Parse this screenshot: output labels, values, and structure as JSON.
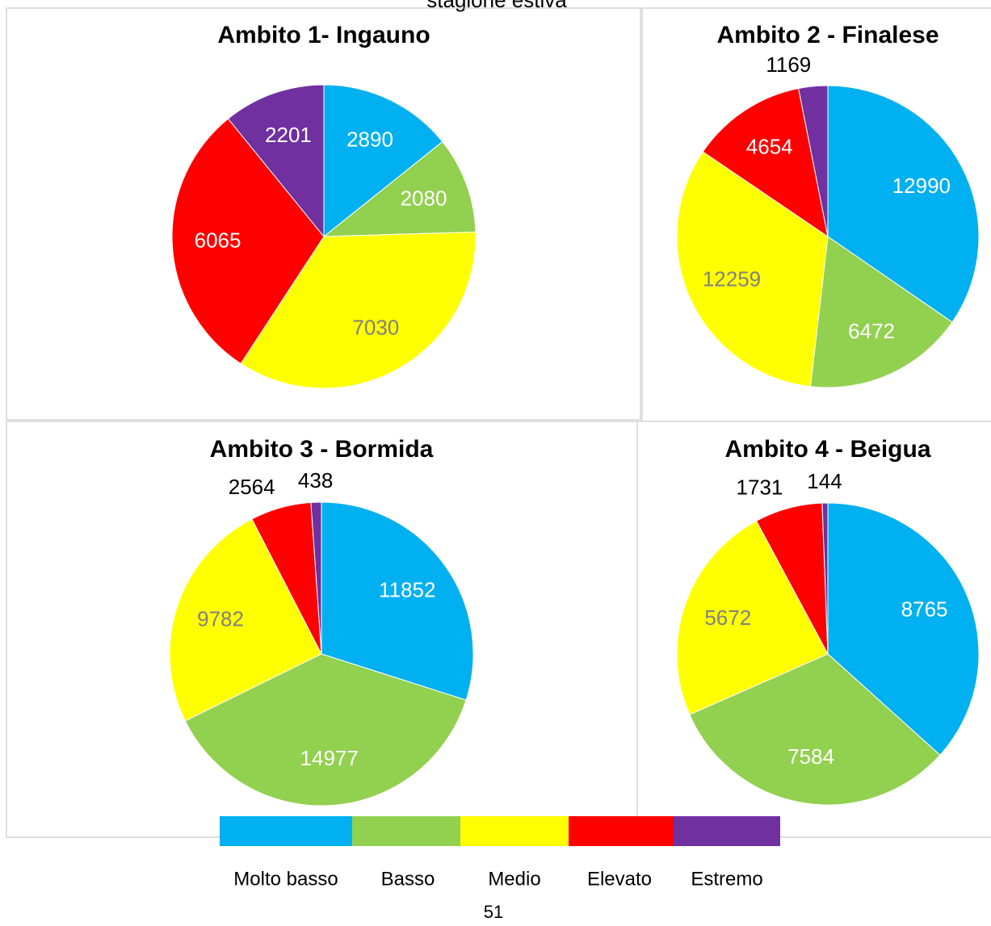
{
  "header": "stagione estiva",
  "page_number": "51",
  "chart_data": [
    {
      "type": "pie",
      "title": "Ambito 1- Ingauno",
      "categories": [
        "Molto basso",
        "Basso",
        "Medio",
        "Elevato",
        "Estremo"
      ],
      "values": [
        2890,
        2080,
        7030,
        6065,
        2201
      ],
      "colors": [
        "#00b0f0",
        "#92d050",
        "#ffff00",
        "#ff0000",
        "#7030a0"
      ]
    },
    {
      "type": "pie",
      "title": "Ambito 2 - Finalese",
      "categories": [
        "Molto basso",
        "Basso",
        "Medio",
        "Elevato",
        "Estremo"
      ],
      "values": [
        12990,
        6472,
        12259,
        4654,
        1169
      ],
      "colors": [
        "#00b0f0",
        "#92d050",
        "#ffff00",
        "#ff0000",
        "#7030a0"
      ]
    },
    {
      "type": "pie",
      "title": "Ambito 3 - Bormida",
      "categories": [
        "Molto basso",
        "Basso",
        "Medio",
        "Elevato",
        "Estremo"
      ],
      "values": [
        11852,
        14977,
        9782,
        2564,
        438
      ],
      "colors": [
        "#00b0f0",
        "#92d050",
        "#ffff00",
        "#ff0000",
        "#7030a0"
      ]
    },
    {
      "type": "pie",
      "title": "Ambito 4 - Beigua",
      "categories": [
        "Molto basso",
        "Basso",
        "Medio",
        "Elevato",
        "Estremo"
      ],
      "values": [
        8765,
        7584,
        5672,
        1731,
        144
      ],
      "colors": [
        "#00b0f0",
        "#92d050",
        "#ffff00",
        "#ff0000",
        "#7030a0"
      ]
    }
  ]
}
